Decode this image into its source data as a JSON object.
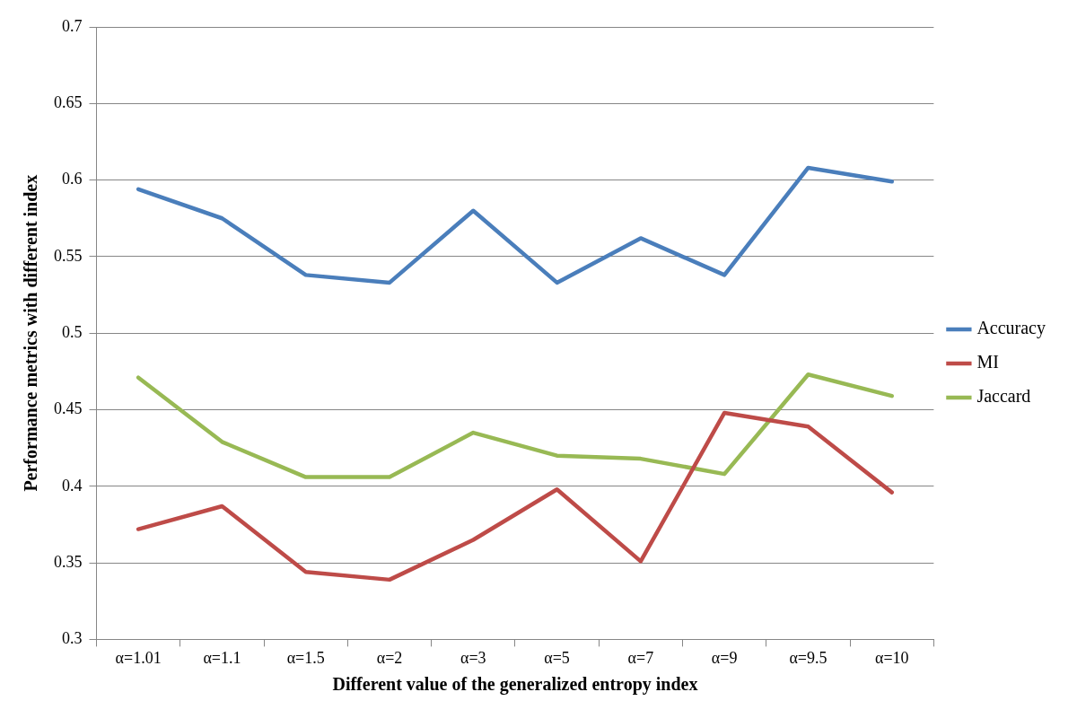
{
  "chart_data": {
    "type": "line",
    "xlabel": "Different value of the generalized entropy index",
    "ylabel": "Performance metrics with different index",
    "categories": [
      "α=1.01",
      "α=1.1",
      "α=1.5",
      "α=2",
      "α=3",
      "α=5",
      "α=7",
      "α=9",
      "α=9.5",
      "α=10"
    ],
    "series": [
      {
        "name": "Accuracy",
        "color": "#4a7ebb",
        "values": [
          0.594,
          0.575,
          0.538,
          0.533,
          0.58,
          0.533,
          0.562,
          0.538,
          0.608,
          0.599
        ]
      },
      {
        "name": "MI",
        "color": "#be4b48",
        "values": [
          0.372,
          0.387,
          0.344,
          0.339,
          0.365,
          0.398,
          0.351,
          0.448,
          0.439,
          0.396
        ]
      },
      {
        "name": "Jaccard",
        "color": "#98b954",
        "values": [
          0.471,
          0.429,
          0.406,
          0.406,
          0.435,
          0.42,
          0.418,
          0.408,
          0.473,
          0.459
        ]
      }
    ],
    "ylim": [
      0.3,
      0.7
    ],
    "yticks": [
      0.3,
      0.35,
      0.4,
      0.45,
      0.5,
      0.55,
      0.6,
      0.65,
      0.7
    ],
    "grid": "y",
    "legend": "right",
    "marker": "none",
    "line_style": "solid"
  }
}
